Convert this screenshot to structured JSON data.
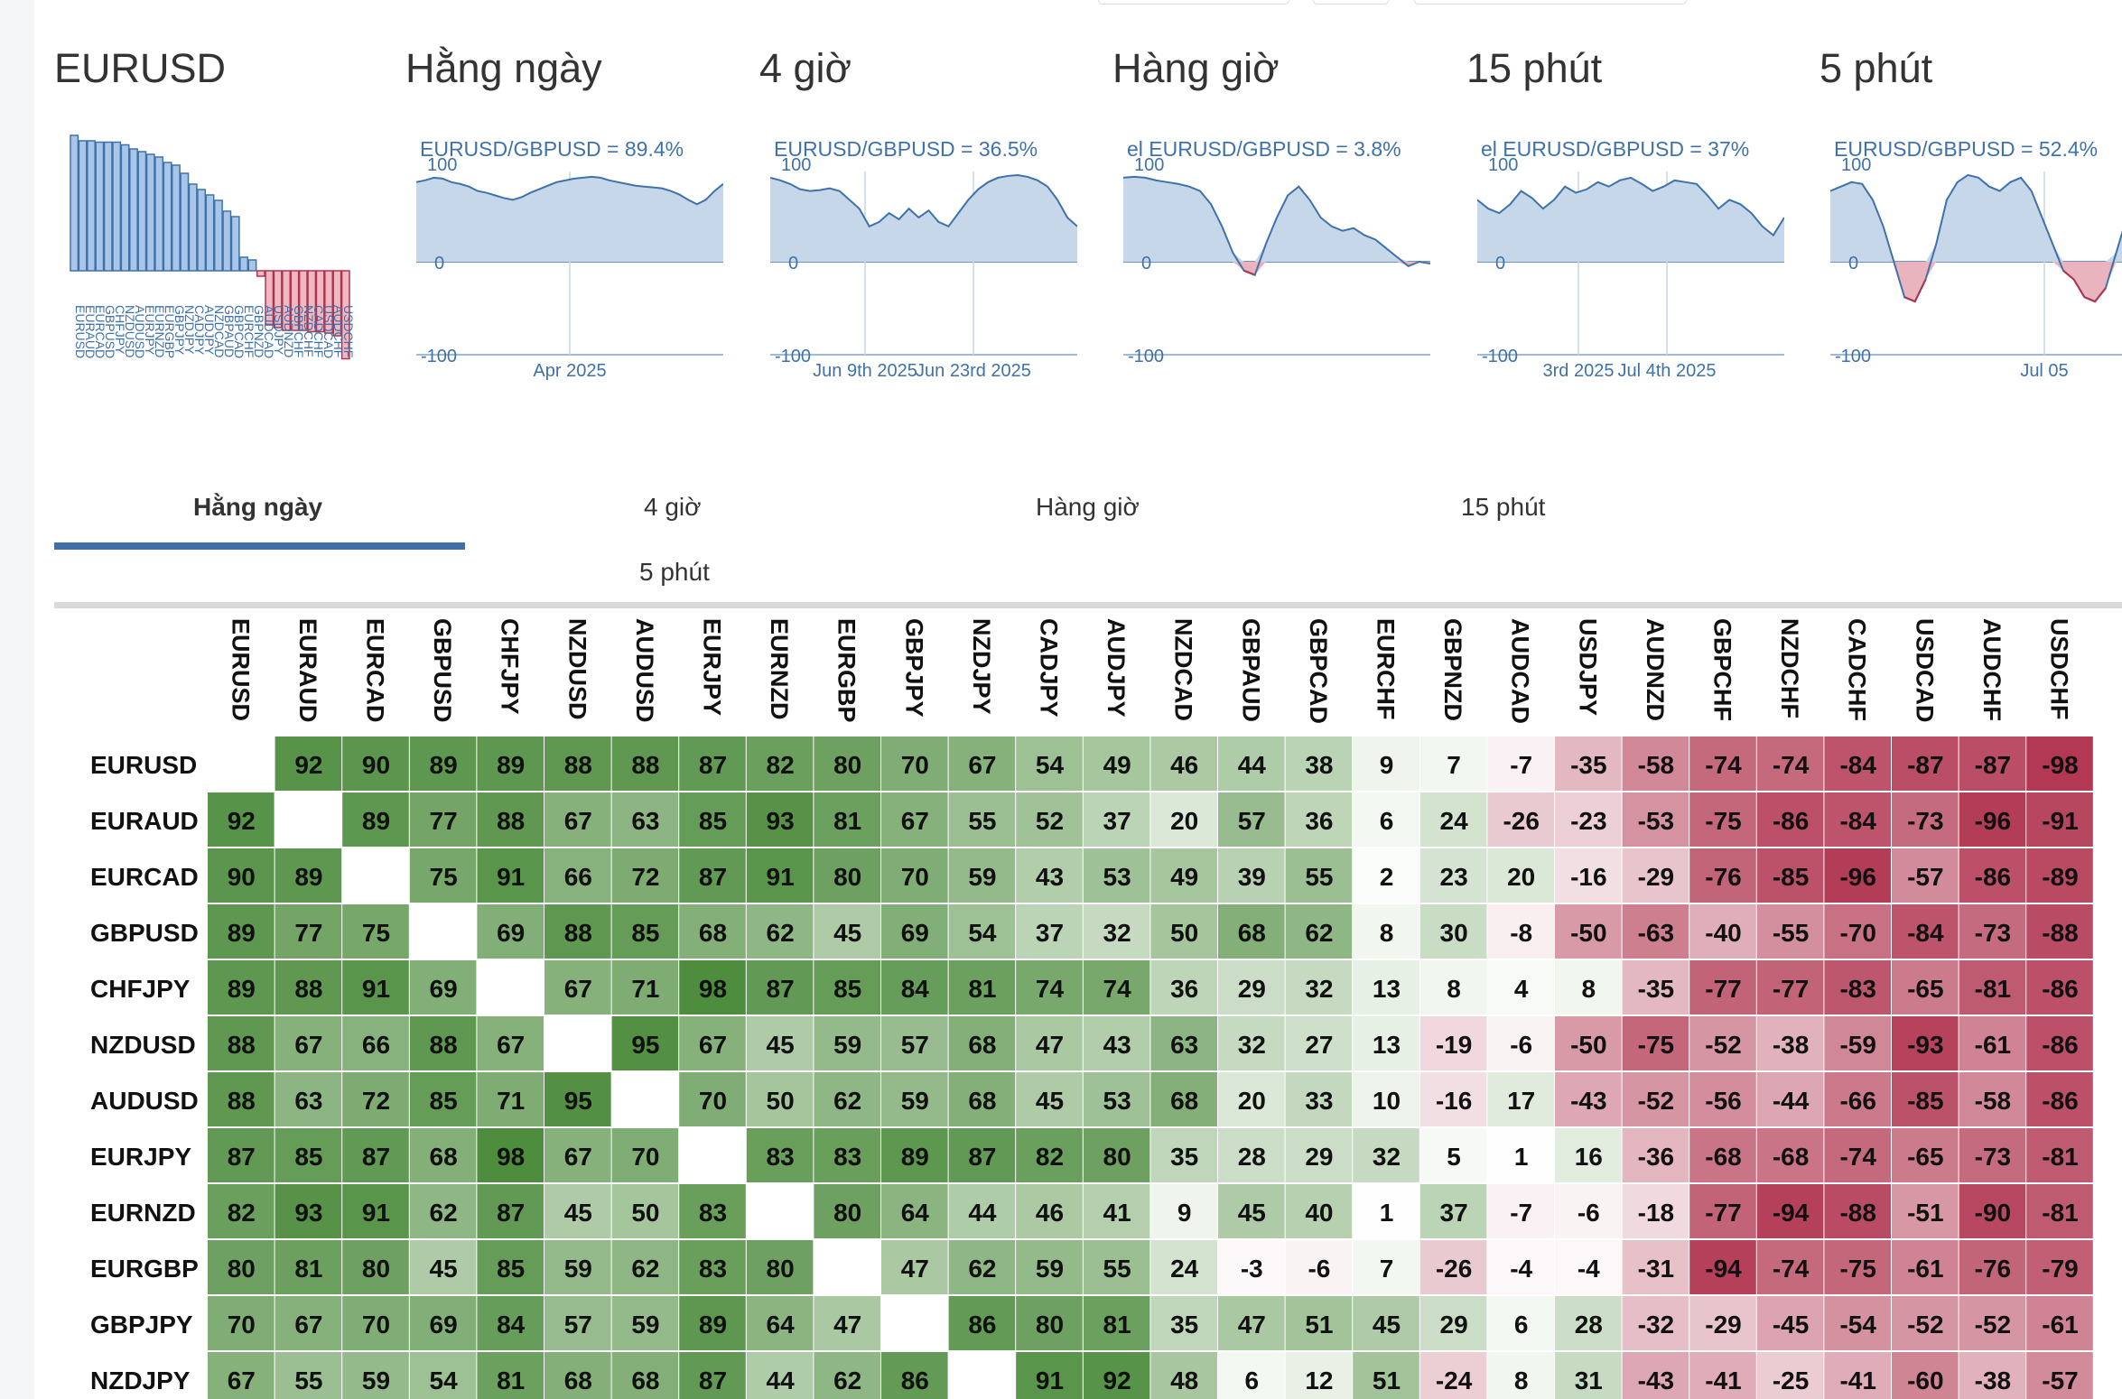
{
  "symbol": "EURUSD",
  "panels": [
    {
      "title": "Hằng ngày",
      "label": "EURUSD/GBPUSD = 89.4%",
      "dates": [
        "Apr 2025"
      ]
    },
    {
      "title": "4 giờ",
      "label": "EURUSD/GBPUSD = 36.5%",
      "dates": [
        "Jun 9th 2025",
        "Jun 23rd 2025"
      ]
    },
    {
      "title": "Hàng giờ",
      "label": "el EURUSD/GBPUSD = 3.8%",
      "dates": []
    },
    {
      "title": "15 phút",
      "label": "el EURUSD/GBPUSD = 37%",
      "dates": [
        "3rd 2025",
        "Jul 4th 2025"
      ]
    },
    {
      "title": "5 phút",
      "label": "EURUSD/GBPUSD = 52.4%",
      "dates": [
        "Jul 05"
      ]
    }
  ],
  "axis_ticks": [
    "100",
    "0",
    "-100"
  ],
  "tabs": [
    "Hằng ngày",
    "4 giờ",
    "Hàng giờ",
    "15 phút",
    "5 phút"
  ],
  "active_tab": "Hằng ngày",
  "colors": {
    "positive": "#4a8a3a",
    "negative": "#b0344f",
    "chart_fill": "#c6d7ea",
    "chart_line": "#3f72aa",
    "tab_indicator": "#3f6ea9"
  },
  "overview_bars": [
    100,
    96,
    96,
    95,
    95,
    95,
    93,
    90,
    88,
    86,
    84,
    80,
    78,
    72,
    64,
    60,
    56,
    52,
    44,
    40,
    10,
    8,
    -4,
    -40,
    -42,
    -44,
    -44,
    -44,
    -45,
    -45,
    -46,
    -48,
    -65
  ],
  "matrix": {
    "columns": [
      "EURUSD",
      "EURAUD",
      "EURCAD",
      "GBPUSD",
      "CHFJPY",
      "NZDUSD",
      "AUDUSD",
      "EURJPY",
      "EURNZD",
      "EURGBP",
      "GBPJPY",
      "NZDJPY",
      "CADJPY",
      "AUDJPY",
      "NZDCAD",
      "GBPAUD",
      "GBPCAD",
      "EURCHF",
      "GBPNZD",
      "AUDCAD",
      "USDJPY",
      "AUDNZD",
      "GBPCHF",
      "NZDCHF",
      "CADCHF",
      "USDCAD",
      "AUDCHF",
      "USDCHF"
    ],
    "rows": [
      {
        "name": "EURUSD",
        "values": [
          "",
          "92",
          "90",
          "89",
          "89",
          "88",
          "88",
          "87",
          "82",
          "80",
          "70",
          "67",
          "54",
          "49",
          "46",
          "44",
          "38",
          "9",
          "7",
          "-7",
          "-35",
          "-58",
          "-74",
          "-74",
          "-84",
          "-87",
          "-87",
          "-98"
        ]
      },
      {
        "name": "EURAUD",
        "values": [
          "92",
          "",
          "89",
          "77",
          "88",
          "67",
          "63",
          "85",
          "93",
          "81",
          "67",
          "55",
          "52",
          "37",
          "20",
          "57",
          "36",
          "6",
          "24",
          "-26",
          "-23",
          "-53",
          "-75",
          "-86",
          "-84",
          "-73",
          "-96",
          "-91"
        ]
      },
      {
        "name": "EURCAD",
        "values": [
          "90",
          "89",
          "",
          "75",
          "91",
          "66",
          "72",
          "87",
          "91",
          "80",
          "70",
          "59",
          "43",
          "53",
          "49",
          "39",
          "55",
          "2",
          "23",
          "20",
          "-16",
          "-29",
          "-76",
          "-85",
          "-96",
          "-57",
          "-86",
          "-89"
        ]
      },
      {
        "name": "GBPUSD",
        "values": [
          "89",
          "77",
          "75",
          "",
          "69",
          "88",
          "85",
          "68",
          "62",
          "45",
          "69",
          "54",
          "37",
          "32",
          "50",
          "68",
          "62",
          "8",
          "30",
          "-8",
          "-50",
          "-63",
          "-40",
          "-55",
          "-70",
          "-84",
          "-73",
          "-88"
        ]
      },
      {
        "name": "CHFJPY",
        "values": [
          "89",
          "88",
          "91",
          "69",
          "",
          "67",
          "71",
          "98",
          "87",
          "85",
          "84",
          "81",
          "74",
          "74",
          "36",
          "29",
          "32",
          "13",
          "8",
          "4",
          "8",
          "-35",
          "-77",
          "-77",
          "-83",
          "-65",
          "-81",
          "-86"
        ]
      },
      {
        "name": "NZDUSD",
        "values": [
          "88",
          "67",
          "66",
          "88",
          "67",
          "",
          "95",
          "67",
          "45",
          "59",
          "57",
          "68",
          "47",
          "43",
          "63",
          "32",
          "27",
          "13",
          "-19",
          "-6",
          "-50",
          "-75",
          "-52",
          "-38",
          "-59",
          "-93",
          "-61",
          "-86"
        ]
      },
      {
        "name": "AUDUSD",
        "values": [
          "88",
          "63",
          "72",
          "85",
          "71",
          "95",
          "",
          "70",
          "50",
          "62",
          "59",
          "68",
          "45",
          "53",
          "68",
          "20",
          "33",
          "10",
          "-16",
          "17",
          "-43",
          "-52",
          "-56",
          "-44",
          "-66",
          "-85",
          "-58",
          "-86"
        ]
      },
      {
        "name": "EURJPY",
        "values": [
          "87",
          "85",
          "87",
          "68",
          "98",
          "67",
          "70",
          "",
          "83",
          "83",
          "89",
          "87",
          "82",
          "80",
          "35",
          "28",
          "29",
          "32",
          "5",
          "1",
          "16",
          "-36",
          "-68",
          "-68",
          "-74",
          "-65",
          "-73",
          "-81"
        ]
      },
      {
        "name": "EURNZD",
        "values": [
          "82",
          "93",
          "91",
          "62",
          "87",
          "45",
          "50",
          "83",
          "",
          "80",
          "64",
          "44",
          "46",
          "41",
          "9",
          "45",
          "40",
          "1",
          "37",
          "-7",
          "-6",
          "-18",
          "-77",
          "-94",
          "-88",
          "-51",
          "-90",
          "-81"
        ]
      },
      {
        "name": "EURGBP",
        "values": [
          "80",
          "81",
          "80",
          "45",
          "85",
          "59",
          "62",
          "83",
          "80",
          "",
          "47",
          "62",
          "59",
          "55",
          "24",
          "-3",
          "-6",
          "7",
          "-26",
          "-4",
          "-4",
          "-31",
          "-94",
          "-74",
          "-75",
          "-61",
          "-76",
          "-79"
        ]
      },
      {
        "name": "GBPJPY",
        "values": [
          "70",
          "67",
          "70",
          "69",
          "84",
          "57",
          "59",
          "89",
          "64",
          "47",
          "",
          "86",
          "80",
          "81",
          "35",
          "47",
          "51",
          "45",
          "29",
          "6",
          "28",
          "-32",
          "-29",
          "-45",
          "-54",
          "-52",
          "-52",
          "-61"
        ]
      },
      {
        "name": "NZDJPY",
        "values": [
          "67",
          "55",
          "59",
          "54",
          "81",
          "68",
          "68",
          "87",
          "44",
          "62",
          "86",
          "",
          "91",
          "92",
          "48",
          "6",
          "12",
          "51",
          "-24",
          "8",
          "31",
          "-43",
          "-41",
          "-25",
          "-41",
          "-60",
          "-38",
          "-57"
        ]
      }
    ]
  }
}
